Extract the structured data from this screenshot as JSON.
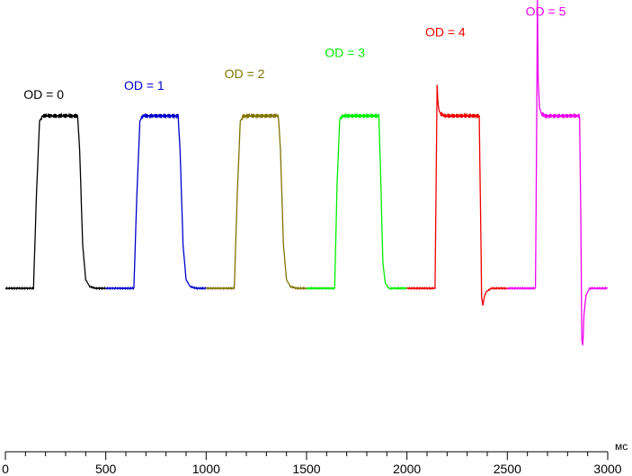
{
  "chart_data": {
    "type": "line",
    "title": "",
    "xlabel": "",
    "x_unit": "мс",
    "ylabel": "",
    "xlim": [
      0,
      3000
    ],
    "ylim": [
      -0.55,
      1.68
    ],
    "grid": false,
    "legend": "none",
    "x_ticks": [
      0,
      500,
      1000,
      1500,
      2000,
      2500,
      3000
    ],
    "x_tick_labels": [
      "0",
      "500",
      "1000",
      "1500",
      "2000",
      "2500",
      "3000"
    ],
    "series": [
      {
        "name": "OD = 0",
        "color": "#000000",
        "x": [
          0,
          140,
          155,
          170,
          185,
          200,
          240,
          280,
          320,
          360,
          370,
          385,
          400,
          420,
          450,
          500
        ],
        "y": [
          0,
          0,
          0.55,
          0.97,
          1.0,
          1.0,
          1.0,
          1.0,
          1.0,
          1.0,
          0.8,
          0.25,
          0.05,
          0.01,
          0,
          0
        ]
      },
      {
        "name": "OD = 1",
        "color": "#0000cc",
        "x": [
          500,
          640,
          655,
          670,
          685,
          700,
          740,
          800,
          860,
          870,
          885,
          900,
          920,
          950,
          1000
        ],
        "y": [
          0,
          0,
          0.55,
          0.97,
          1.0,
          1.0,
          1.0,
          1.0,
          1.0,
          0.8,
          0.25,
          0.05,
          0.01,
          0,
          0
        ]
      },
      {
        "name": "OD = 2",
        "color": "#7f7400",
        "x": [
          1000,
          1140,
          1155,
          1170,
          1185,
          1200,
          1240,
          1300,
          1360,
          1370,
          1385,
          1400,
          1420,
          1450,
          1500
        ],
        "y": [
          0,
          0,
          0.55,
          0.97,
          1.0,
          1.0,
          1.0,
          1.0,
          1.0,
          0.8,
          0.25,
          0.05,
          0.01,
          0,
          0
        ]
      },
      {
        "name": "OD = 3",
        "color": "#00ee00",
        "x": [
          1500,
          1640,
          1652,
          1665,
          1680,
          1700,
          1750,
          1800,
          1860,
          1868,
          1880,
          1892,
          1910,
          1950,
          2000
        ],
        "y": [
          0,
          0,
          0.6,
          0.98,
          1.0,
          1.0,
          1.0,
          1.0,
          1.0,
          0.7,
          0.15,
          0.03,
          0,
          0,
          0
        ]
      },
      {
        "name": "OD = 4",
        "color": "#ee0000",
        "x": [
          2000,
          2140,
          2146,
          2150,
          2154,
          2160,
          2170,
          2190,
          2250,
          2360,
          2366,
          2372,
          2378,
          2385,
          2395,
          2420,
          2450,
          2500
        ],
        "y": [
          0,
          0,
          0.7,
          1.18,
          1.08,
          1.03,
          1.01,
          1.0,
          1.0,
          1.0,
          0.5,
          -0.05,
          -0.1,
          -0.05,
          -0.02,
          0,
          0,
          0
        ]
      },
      {
        "name": "OD = 5",
        "color": "#ee00ee",
        "x": [
          2500,
          2640,
          2646,
          2650,
          2654,
          2660,
          2670,
          2690,
          2750,
          2860,
          2866,
          2871,
          2876,
          2882,
          2892,
          2910,
          2950,
          3000
        ],
        "y": [
          0,
          0,
          0.9,
          1.68,
          1.2,
          1.05,
          1.01,
          1.0,
          1.0,
          1.0,
          0.4,
          -0.3,
          -0.33,
          -0.15,
          -0.04,
          0,
          0,
          0
        ]
      }
    ],
    "annotations": [
      {
        "text": "OD = 0",
        "color": "#000000",
        "x": 200,
        "y": 1.1
      },
      {
        "text": "OD = 1",
        "color": "#0000cc",
        "x": 700,
        "y": 1.15
      },
      {
        "text": "OD = 2",
        "color": "#7f7400",
        "x": 1200,
        "y": 1.22
      },
      {
        "text": "OD = 3",
        "color": "#00ee00",
        "x": 1700,
        "y": 1.34
      },
      {
        "text": "OD = 4",
        "color": "#ee0000",
        "x": 2200,
        "y": 1.46
      },
      {
        "text": "OD = 5",
        "color": "#ee00ee",
        "x": 2700,
        "y": 1.58
      }
    ]
  }
}
